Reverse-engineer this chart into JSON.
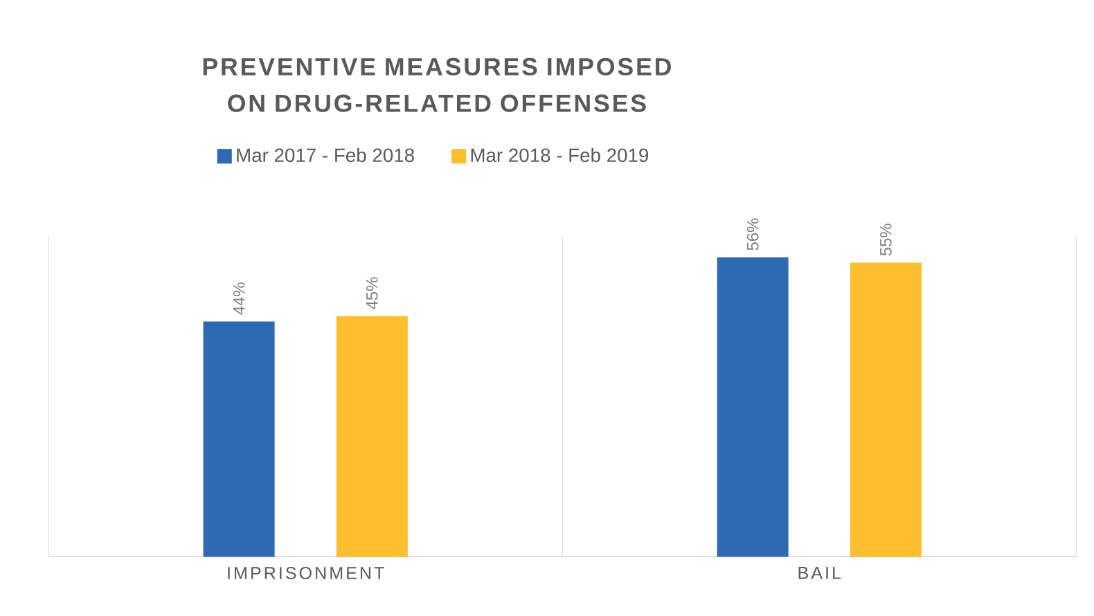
{
  "chart_data": {
    "type": "bar",
    "title": "PREVENTIVE MEASURES IMPOSED ON DRUG-RELATED OFFENSES",
    "categories": [
      "IMPRISONMENT",
      "BAIL"
    ],
    "series": [
      {
        "name": "Mar 2017 - Feb 2018",
        "color": "#2e6ab3",
        "values": [
          44,
          56
        ],
        "value_labels": [
          "44%",
          "56%"
        ]
      },
      {
        "name": "Mar 2018 - Feb 2019",
        "color": "#fdbf2d",
        "values": [
          45,
          55
        ],
        "value_labels": [
          "45%",
          "55%"
        ]
      }
    ],
    "ylim": [
      0,
      60
    ],
    "grid": "x",
    "legend": "top"
  }
}
